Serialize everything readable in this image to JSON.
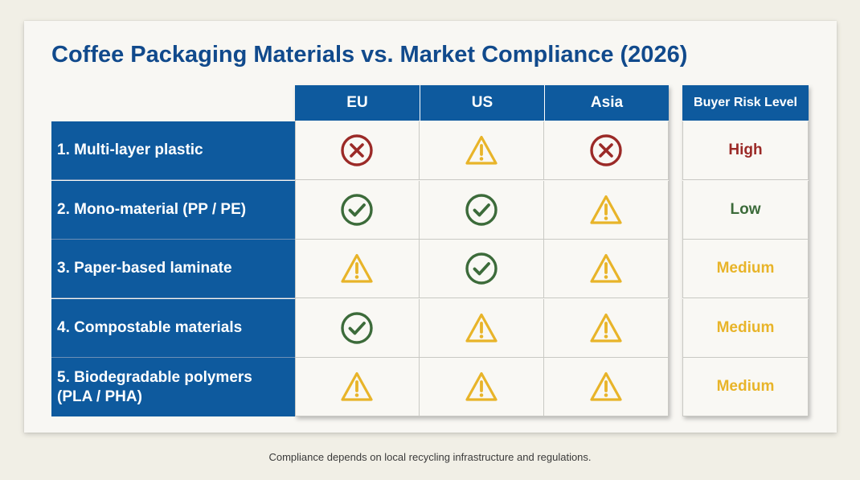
{
  "title": "Coffee Packaging Materials vs. Market Compliance (2026)",
  "columns": {
    "eu": "EU",
    "us": "US",
    "asia": "Asia",
    "risk": "Buyer Risk Level"
  },
  "rows": [
    {
      "label": "1. Multi-layer plastic",
      "eu": "x-circle-icon",
      "us": "warning-triangle-icon",
      "asia": "x-circle-icon",
      "risk": "High"
    },
    {
      "label": "2. Mono-material (PP / PE)",
      "eu": "check-circle-icon",
      "us": "check-circle-icon",
      "asia": "warning-triangle-icon",
      "risk": "Low"
    },
    {
      "label": "3. Paper-based laminate",
      "eu": "warning-triangle-icon",
      "us": "check-circle-icon",
      "asia": "warning-triangle-icon",
      "risk": "Medium"
    },
    {
      "label": "4. Compostable materials",
      "eu": "check-circle-icon",
      "us": "warning-triangle-icon",
      "asia": "warning-triangle-icon",
      "risk": "Medium"
    },
    {
      "label": "5. Biodegradable polymers (PLA / PHA)",
      "eu": "warning-triangle-icon",
      "us": "warning-triangle-icon",
      "asia": "warning-triangle-icon",
      "risk": "Medium"
    }
  ],
  "colors": {
    "header_blue": "#0e5a9e",
    "title_blue": "#114a8c",
    "x_red": "#9b2a27",
    "check_green": "#3c6b3a",
    "warning_yellow": "#e8b429",
    "risk_high": "#9b2a27",
    "risk_low": "#3c6b3a",
    "risk_medium": "#e8b429"
  },
  "footnote": "Compliance depends on local recycling infrastructure and regulations."
}
